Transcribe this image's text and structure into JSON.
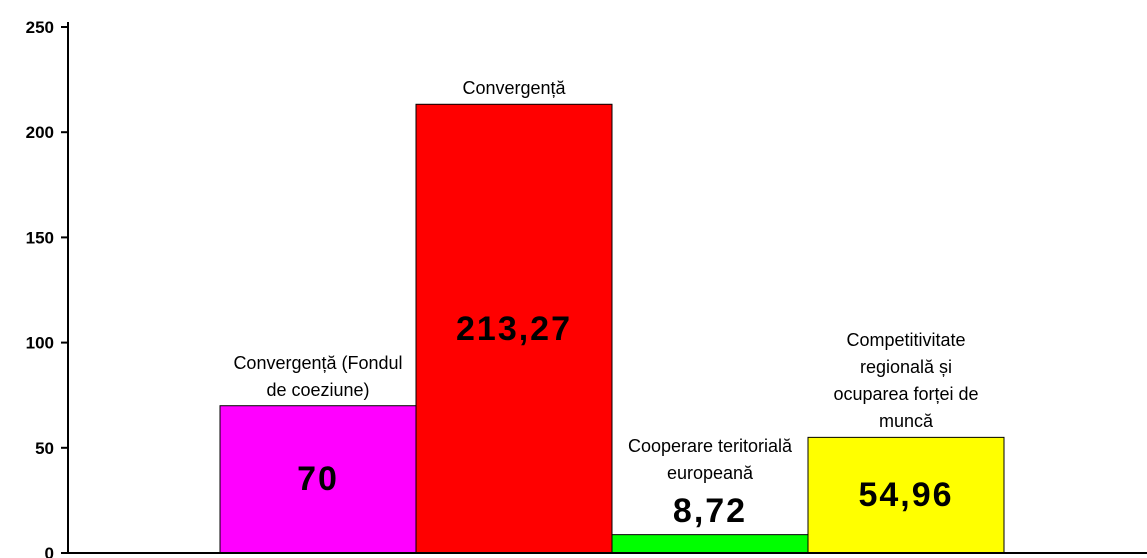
{
  "chart_data": {
    "type": "bar",
    "categories": [
      "Convergență (Fondul de coeziune)",
      "Convergență",
      "Cooperare teritorială europeană",
      "Competitivitate regională și ocuparea forței de muncă"
    ],
    "values": [
      70,
      213.27,
      8.72,
      54.96
    ],
    "value_labels": [
      "70",
      "213,27",
      "8,72",
      "54,96"
    ],
    "colors": [
      "#ff00ff",
      "#ff0000",
      "#00ff00",
      "#ffff00"
    ],
    "ylim": [
      0,
      250
    ],
    "yticks": [
      0,
      50,
      100,
      150,
      200,
      250
    ]
  }
}
